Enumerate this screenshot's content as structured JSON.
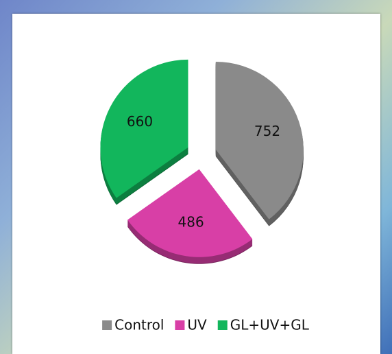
{
  "chart_data": {
    "type": "pie",
    "categories": [
      "Control",
      "UV",
      "GL+UV+GL"
    ],
    "values": [
      752,
      486,
      660
    ],
    "colors": [
      "#8a8a8a",
      "#d83fa6",
      "#12b65c"
    ],
    "legend": "bottom"
  }
}
